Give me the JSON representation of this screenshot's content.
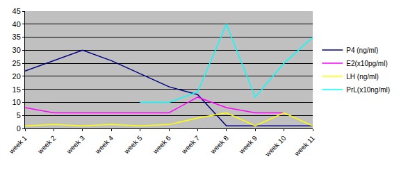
{
  "chart_data": {
    "type": "line",
    "categories": [
      "week 1",
      "week 2",
      "week 3",
      "week 4",
      "week 5",
      "week 6",
      "week 7",
      "week 8",
      "week 9",
      "week 10",
      "week 11"
    ],
    "series": [
      {
        "name": "P4 (ng/ml)",
        "color": "#000080",
        "values": [
          22,
          26,
          30,
          26,
          21,
          16,
          13,
          1,
          1,
          1,
          1
        ]
      },
      {
        "name": "E2(x10pg/ml)",
        "color": "#ff00ff",
        "values": [
          8,
          6,
          6,
          6,
          6,
          6,
          12,
          8,
          6,
          6,
          null
        ]
      },
      {
        "name": "LH (ng/ml)",
        "color": "#ffff00",
        "values": [
          1,
          1.5,
          1,
          1.5,
          1,
          1.5,
          4,
          6,
          1,
          6,
          1
        ]
      },
      {
        "name": "PrL(x10ng/ml)",
        "color": "#00ffff",
        "values": [
          null,
          null,
          null,
          null,
          10,
          10,
          14,
          40,
          12,
          25,
          35
        ]
      }
    ],
    "ylim": [
      0,
      45
    ],
    "yticks": [
      0,
      5,
      10,
      15,
      20,
      25,
      30,
      35,
      40,
      45
    ],
    "grid": true,
    "legend": "right"
  }
}
